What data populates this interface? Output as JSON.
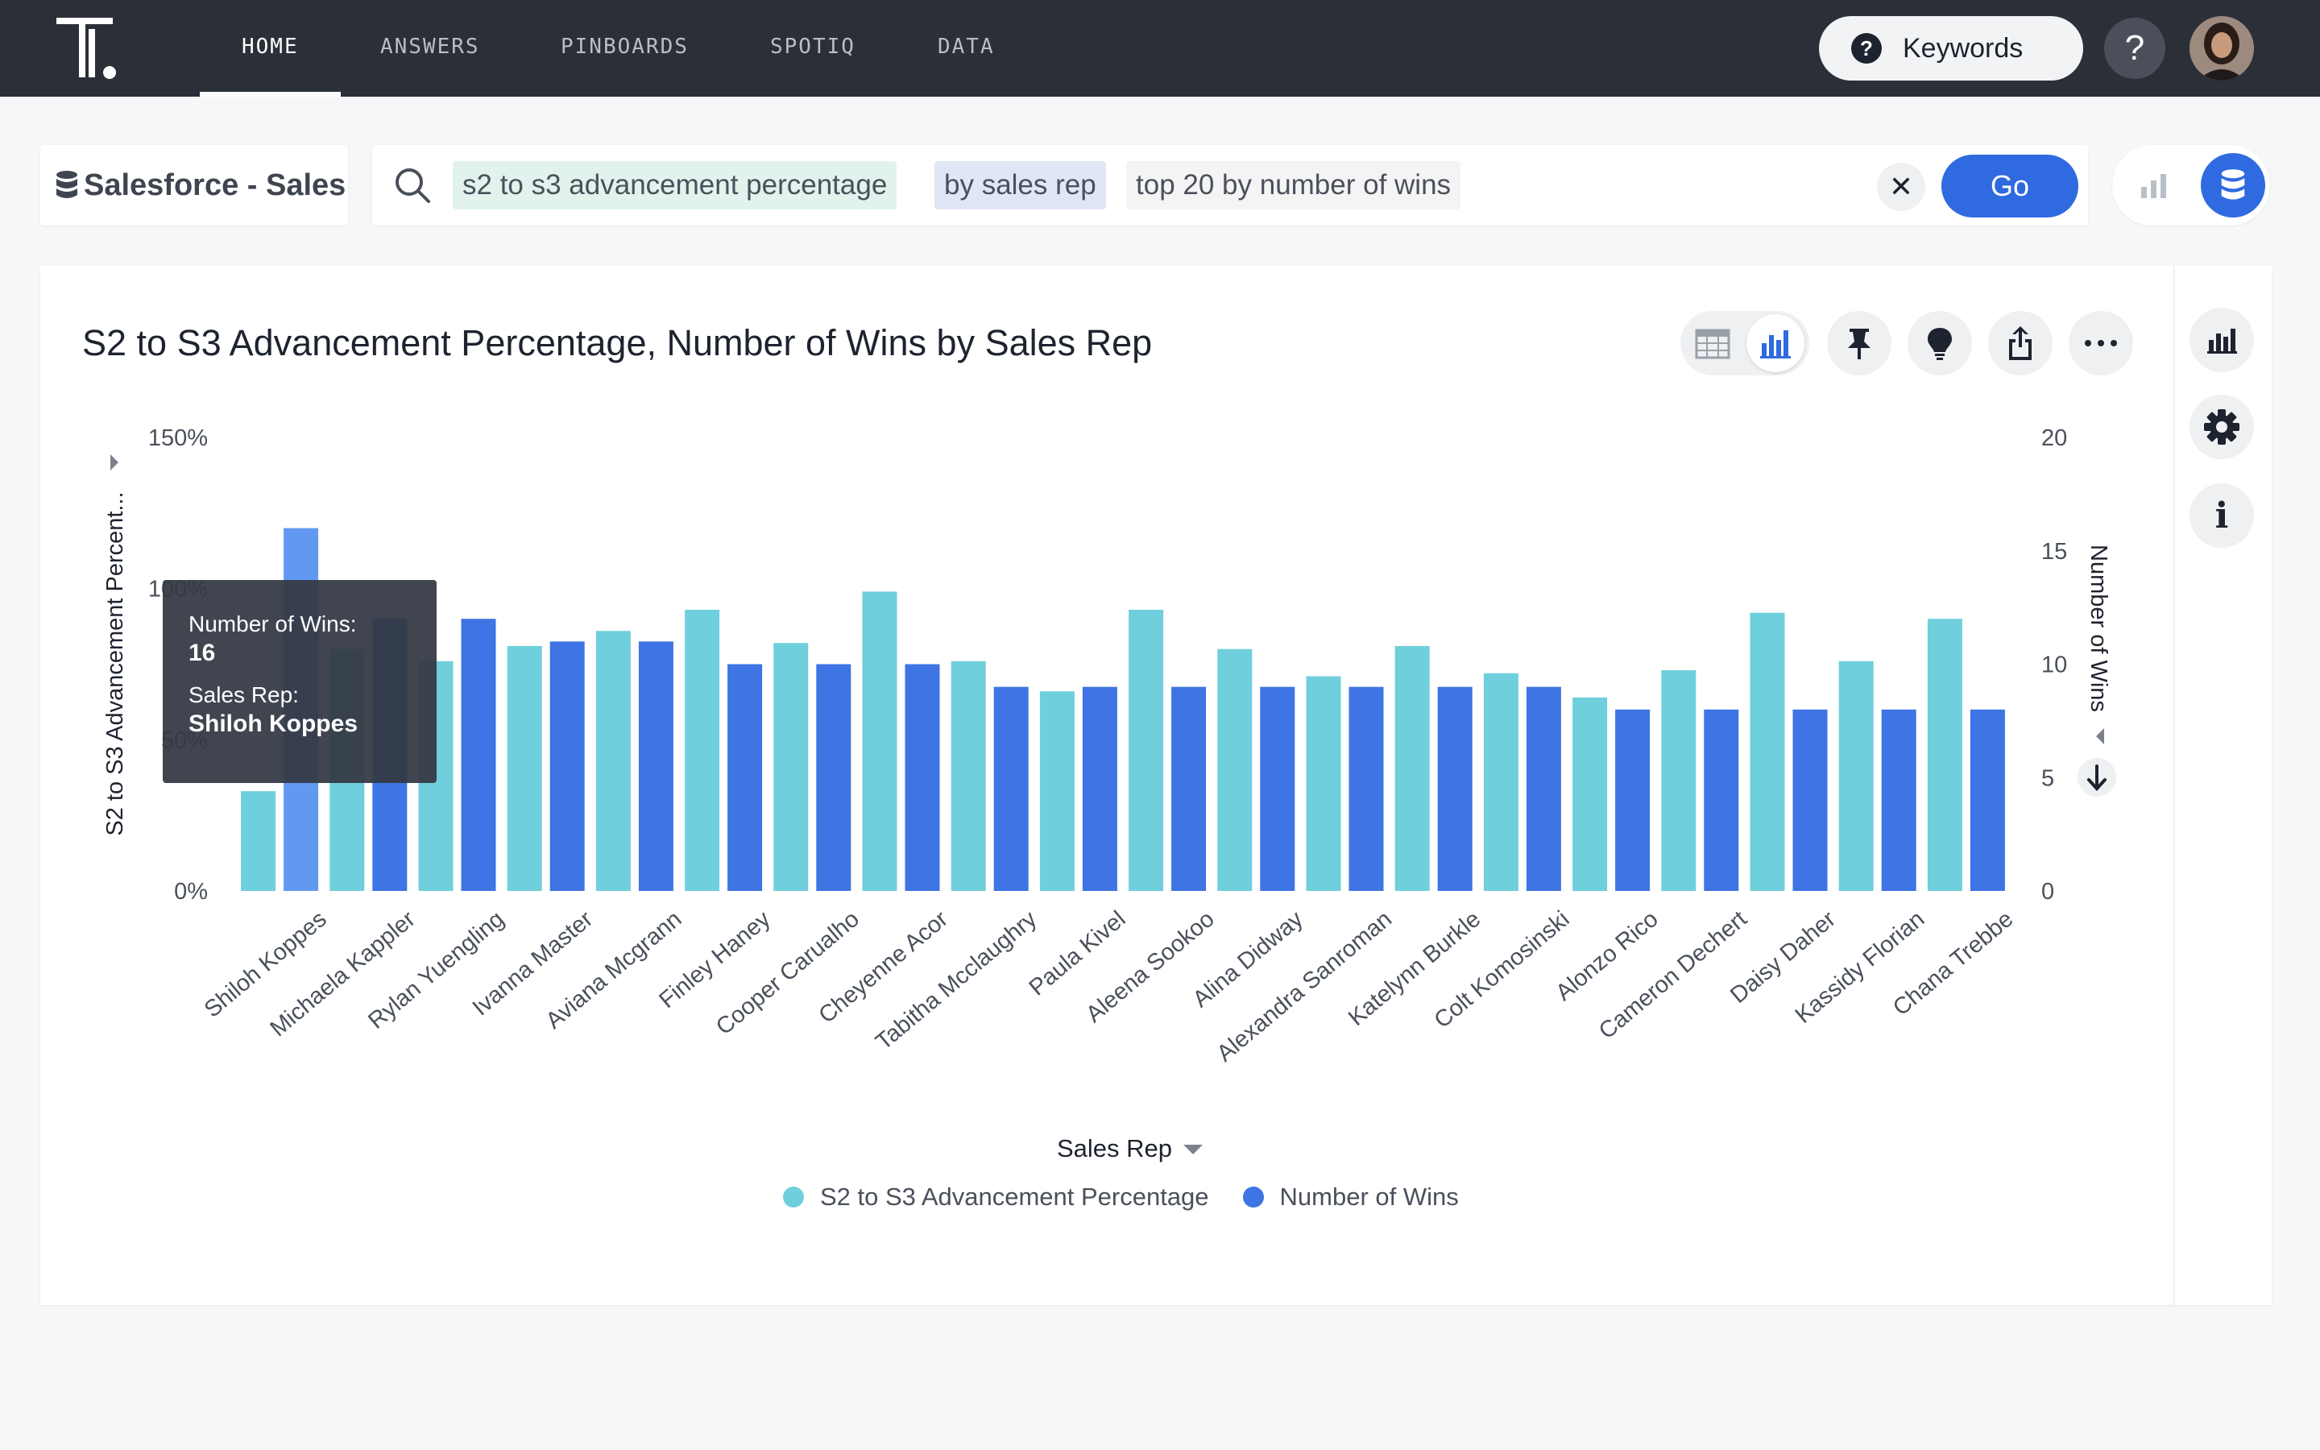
{
  "nav": {
    "items": [
      "HOME",
      "ANSWERS",
      "PINBOARDS",
      "SPOTIQ",
      "DATA"
    ],
    "active": "HOME",
    "keywords_label": "Keywords",
    "help_label": "?"
  },
  "search": {
    "source_label": "Salesforce - Sales",
    "tokens": [
      {
        "text": "s2 to s3 advancement percentage",
        "kind": "measure"
      },
      {
        "text": "by sales rep",
        "kind": "attribute"
      },
      {
        "text": "top 20 by number of wins",
        "kind": "keyword"
      }
    ],
    "clear_label": "✕",
    "go_label": "Go"
  },
  "answer": {
    "title": "S2 to S3 Advancement Percentage, Number of Wins by Sales Rep"
  },
  "tooltip": {
    "measure_label": "Number of Wins:",
    "measure_value": "16",
    "attr_label": "Sales Rep:",
    "attr_value": "Shiloh Koppes"
  },
  "colors": {
    "series_pct": "#6fcfdc",
    "series_wins": "#3e74e3",
    "highlight": "#6398f2",
    "accent": "#2f6ae0"
  },
  "chart_data": {
    "type": "bar",
    "title": "S2 to S3 Advancement Percentage, Number of Wins by Sales Rep",
    "xlabel": "Sales Rep",
    "ylabel": "S2 to S3 Advancement Percent...",
    "y2label": "Number of Wins",
    "ylim": [
      0,
      150
    ],
    "y2lim": [
      0,
      20
    ],
    "y_ticks": [
      "0%",
      "50%",
      "100%",
      "150%"
    ],
    "y2_ticks": [
      "0",
      "5",
      "10",
      "15",
      "20"
    ],
    "legend_position": "bottom-center",
    "categories": [
      "Shiloh Koppes",
      "Michaela Kappler",
      "Rylan Yuengling",
      "Ivanna Master",
      "Aviana Mcgrann",
      "Finley Haney",
      "Cooper Carualho",
      "Cheyenne Acor",
      "Tabitha Mcclaughry",
      "Paula Kivel",
      "Aleena Sookoo",
      "Alina Didway",
      "Alexandra Sanroman",
      "Katelynn Burkle",
      "Colt Komosinski",
      "Alonzo Rico",
      "Cameron Dechert",
      "Daisy Daher",
      "Kassidy Florian",
      "Chana Trebbe"
    ],
    "series": [
      {
        "name": "S2 to S3 Advancement Percentage",
        "axis": "left",
        "values": [
          33,
          80,
          76,
          81,
          86,
          93,
          82,
          99,
          76,
          66,
          93,
          80,
          71,
          81,
          72,
          64,
          73,
          92,
          76,
          90
        ]
      },
      {
        "name": "Number of Wins",
        "axis": "right",
        "values": [
          16,
          12,
          12,
          11,
          11,
          10,
          10,
          10,
          9,
          9,
          9,
          9,
          9,
          9,
          9,
          8,
          8,
          8,
          8,
          8
        ]
      }
    ]
  }
}
